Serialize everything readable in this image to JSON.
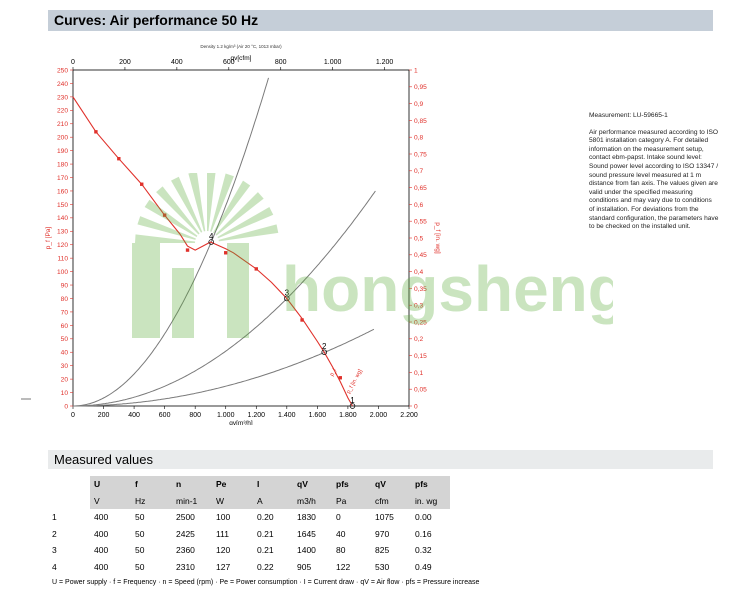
{
  "title": "Curves: Air performance 50 Hz",
  "chart_data": {
    "type": "line",
    "top_caption": "Density 1.2 kg/m³ (Air 20 °C, 1013 mbar)",
    "x_top": {
      "label": "qv[cfm]",
      "ticks": [
        "0",
        "200",
        "400",
        "600",
        "800",
        "1.000",
        "1.200"
      ],
      "range": [
        0,
        1294
      ]
    },
    "x_bottom": {
      "label": "qv[m³/h]",
      "ticks": [
        "0",
        "200",
        "400",
        "600",
        "800",
        "1.000",
        "1.200",
        "1.400",
        "1.600",
        "1.800",
        "2.000",
        "2.200"
      ],
      "range": [
        0,
        2200
      ]
    },
    "y_left": {
      "label": "p_f [Pa]",
      "ticks": [
        "0",
        "10",
        "20",
        "30",
        "40",
        "50",
        "60",
        "70",
        "80",
        "90",
        "100",
        "110",
        "120",
        "130",
        "140",
        "150",
        "160",
        "170",
        "180",
        "190",
        "200",
        "210",
        "220",
        "230",
        "240",
        "250"
      ],
      "range": [
        0,
        250
      ]
    },
    "y_right": {
      "label": "p_f [in. wg]",
      "ticks": [
        "0",
        "0,05",
        "0,1",
        "0,15",
        "0,2",
        "0,25",
        "0,3",
        "0,35",
        "0,4",
        "0,45",
        "0,5",
        "0,55",
        "0,6",
        "0,65",
        "0,7",
        "0,75",
        "0,8",
        "0,85",
        "0,9",
        "0,95",
        "1"
      ],
      "range": [
        0,
        1
      ]
    },
    "series": [
      {
        "color": "#e0312b",
        "x": [
          0,
          150,
          300,
          450,
          600,
          700,
          750,
          800,
          850,
          900,
          1000,
          1050,
          1100,
          1200,
          1300,
          1400,
          1500,
          1600,
          1645,
          1700,
          1750,
          1800,
          1830
        ],
        "y": [
          230,
          204,
          184,
          165,
          142,
          128,
          119,
          116,
          119,
          122,
          117,
          114,
          110,
          102,
          92,
          80,
          65,
          48,
          40,
          29,
          18,
          6,
          0
        ]
      }
    ],
    "marker_points": {
      "x": [
        150,
        300,
        450,
        600,
        750,
        1000,
        1200,
        1500,
        1750
      ],
      "y": [
        204,
        184,
        165,
        142,
        116,
        114,
        102,
        64,
        21
      ]
    },
    "operating_points": [
      {
        "label": "1",
        "x": 1830,
        "y": 0
      },
      {
        "label": "2",
        "x": 1645,
        "y": 40
      },
      {
        "label": "3",
        "x": 1400,
        "y": 80
      },
      {
        "label": "4",
        "x": 905,
        "y": 122
      }
    ],
    "system_curves": [
      {
        "k": 0.000149,
        "xmax": 1280
      },
      {
        "k": 4.08e-05,
        "xmax": 1980
      },
      {
        "k": 1.471e-05,
        "xmax": 1970
      }
    ],
    "curve_labels": [
      "p_f",
      "p_f [in. wg]"
    ],
    "grid": false,
    "legend": "none"
  },
  "info": {
    "measurement": "Measurement: LU-59665-1",
    "text": "Air performance measured according to ISO 5801 installation category A. For detailed information on the measurement setup, contact ebm-papst. Intake sound level: Sound power level according to ISO 13347 / sound pressure level measured at 1 m distance from fan axis. The values given are valid under the specified measuring conditions and may vary due to conditions of installation. For deviations from the standard configuration, the parameters have to be checked on the installed unit."
  },
  "measured": {
    "title": "Measured values",
    "symbols": [
      "U",
      "f",
      "n",
      "Pe",
      "I",
      "qV",
      "pfs",
      "qV",
      "pfs"
    ],
    "units": [
      "V",
      "Hz",
      "min-1",
      "W",
      "A",
      "m3/h",
      "Pa",
      "cfm",
      "in. wg"
    ],
    "rows": [
      [
        "1",
        "400",
        "50",
        "2500",
        "100",
        "0.20",
        "1830",
        "0",
        "1075",
        "0.00"
      ],
      [
        "2",
        "400",
        "50",
        "2425",
        "111",
        "0.21",
        "1645",
        "40",
        "970",
        "0.16"
      ],
      [
        "3",
        "400",
        "50",
        "2360",
        "120",
        "0.21",
        "1400",
        "80",
        "825",
        "0.32"
      ],
      [
        "4",
        "400",
        "50",
        "2310",
        "127",
        "0.22",
        "905",
        "122",
        "530",
        "0.49"
      ]
    ]
  },
  "footnote": "U = Power supply · f = Frequency · n = Speed (rpm) · Pe = Power consumption · I = Current draw · qV = Air flow · pfs = Pressure increase",
  "watermark": {
    "text": "hongsheng",
    "color": "#5cae3c"
  }
}
